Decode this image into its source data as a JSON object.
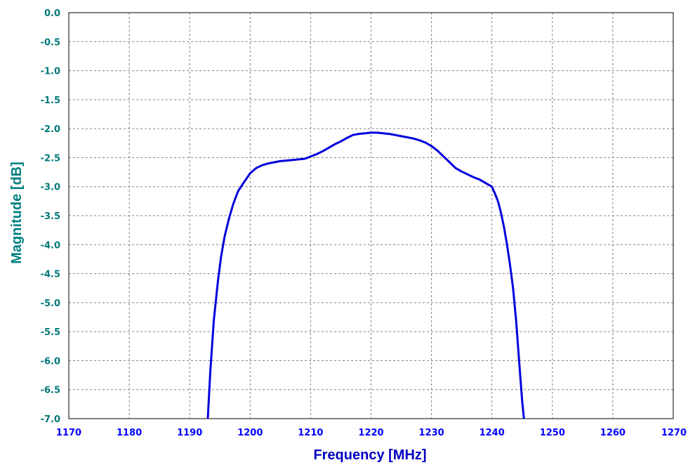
{
  "colors": {
    "y_tick_labels": "#007878",
    "x_tick_labels": "#0000ff",
    "x_axis_title": "#0000c0",
    "y_axis_title": "#008080",
    "series_line": "#0000dd",
    "grid": "#808080",
    "frame": "#000000"
  },
  "chart_data": {
    "type": "line",
    "title": "",
    "xlabel": "Frequency [MHz]",
    "ylabel": "Magnitude [dB]",
    "xlim": [
      1170,
      1270
    ],
    "ylim": [
      -7.0,
      0.0
    ],
    "grid": true,
    "x_ticks": [
      "1170",
      "1180",
      "1190",
      "1200",
      "1210",
      "1220",
      "1230",
      "1240",
      "1250",
      "1260",
      "1270"
    ],
    "y_ticks": [
      "0.0",
      "-0.5",
      "-1.0",
      "-1.5",
      "-2.0",
      "-2.5",
      "-3.0",
      "-3.5",
      "-4.0",
      "-4.5",
      "-5.0",
      "-5.5",
      "-6.0",
      "-6.5",
      "-7.0"
    ],
    "series": [
      {
        "x": [
          1193.0,
          1193.4,
          1194.0,
          1194.7,
          1195.2,
          1195.8,
          1196.5,
          1197.2,
          1198.0,
          1199.0,
          1200.0,
          1201.0,
          1202.0,
          1203.0,
          1204.0,
          1205.0,
          1206.0,
          1207.0,
          1208.0,
          1209.0,
          1210.0,
          1211.0,
          1212.0,
          1213.0,
          1214.0,
          1215.0,
          1216.0,
          1217.0,
          1218.0,
          1219.0,
          1220.0,
          1221.0,
          1222.0,
          1223.0,
          1224.0,
          1225.0,
          1226.0,
          1227.0,
          1228.0,
          1229.0,
          1230.0,
          1231.0,
          1232.0,
          1233.0,
          1234.0,
          1235.0,
          1236.0,
          1237.0,
          1238.0,
          1239.0,
          1240.0,
          1240.5,
          1241.0,
          1241.5,
          1242.0,
          1242.5,
          1243.0,
          1243.5,
          1244.0,
          1244.5,
          1245.0,
          1245.3
        ],
        "y": [
          -7.0,
          -6.2,
          -5.3,
          -4.6,
          -4.2,
          -3.85,
          -3.55,
          -3.3,
          -3.08,
          -2.92,
          -2.77,
          -2.68,
          -2.63,
          -2.6,
          -2.58,
          -2.56,
          -2.55,
          -2.54,
          -2.53,
          -2.52,
          -2.48,
          -2.44,
          -2.39,
          -2.33,
          -2.27,
          -2.22,
          -2.16,
          -2.11,
          -2.09,
          -2.08,
          -2.07,
          -2.07,
          -2.08,
          -2.09,
          -2.11,
          -2.13,
          -2.15,
          -2.17,
          -2.2,
          -2.24,
          -2.3,
          -2.38,
          -2.48,
          -2.58,
          -2.68,
          -2.74,
          -2.79,
          -2.84,
          -2.88,
          -2.94,
          -3.0,
          -3.12,
          -3.25,
          -3.45,
          -3.7,
          -4.0,
          -4.35,
          -4.75,
          -5.3,
          -6.0,
          -6.7,
          -7.0
        ]
      }
    ]
  }
}
